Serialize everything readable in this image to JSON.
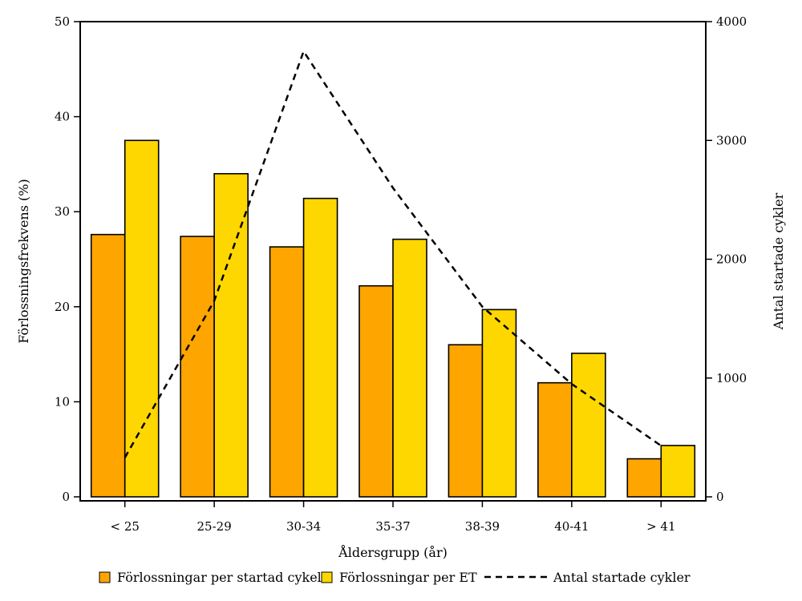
{
  "chart_data": {
    "type": "bar",
    "title": "",
    "xlabel": "Åldersgrupp (år)",
    "ylabel": "Förlossningsfrekvens (%)",
    "y2label": "Antal startade cykler",
    "categories": [
      "< 25",
      "25-29",
      "30-34",
      "35-37",
      "38-39",
      "40-41",
      "> 41"
    ],
    "ylim": [
      0,
      50
    ],
    "yticks": [
      "0",
      "10",
      "20",
      "30",
      "40",
      "50"
    ],
    "y2lim": [
      0,
      4000
    ],
    "y2ticks": [
      "0",
      "1000",
      "2000",
      "3000",
      "4000"
    ],
    "series": [
      {
        "name": "Förlossningar per startad cykel",
        "kind": "bar",
        "axis": "left",
        "color": "#FFA500",
        "values": [
          27.6,
          27.4,
          26.3,
          22.2,
          16.0,
          12.0,
          4.0
        ]
      },
      {
        "name": "Förlossningar per ET",
        "kind": "bar",
        "axis": "left",
        "color": "#FFD700",
        "values": [
          37.5,
          34.0,
          31.4,
          27.1,
          19.7,
          15.1,
          5.4
        ]
      },
      {
        "name": "Antal startade cykler",
        "kind": "line",
        "axis": "right",
        "color": "#000000",
        "line_style": "dashed",
        "values": [
          330,
          1650,
          3750,
          2600,
          1600,
          950,
          430
        ]
      }
    ],
    "grid": false,
    "legend_position": "bottom"
  }
}
